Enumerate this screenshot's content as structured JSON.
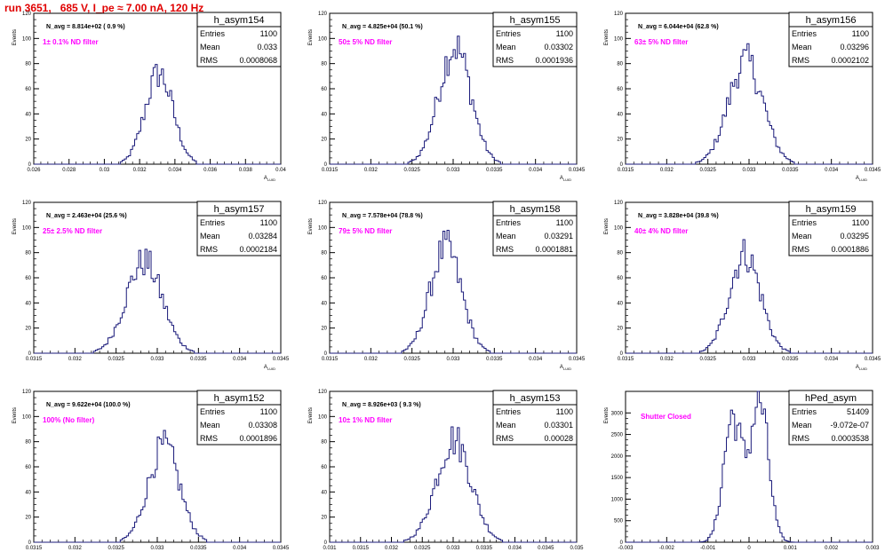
{
  "run_title": "run 3651,   685 V, I_pe ≈ 7.00 nA, 120 Hz",
  "colors": {
    "histogram": "#1a1a7a",
    "annotation": "#ff00ff",
    "title": "#e00000",
    "text": "#000000"
  },
  "chart_data": [
    {
      "type": "histogram",
      "name": "h_asym154",
      "stats": {
        "entries": "1100",
        "mean": "0.033",
        "rms": "0.0008068"
      },
      "navg": "N_avg = 8.814e+02 ( 0.9 %)",
      "filter": "1± 0.1% ND filter",
      "ylabel": "Events",
      "xlabel": "A",
      "ylim": [
        0,
        120
      ],
      "yticks": [
        "0",
        "20",
        "40",
        "60",
        "80",
        "100",
        "120"
      ],
      "xlim": [
        0.026,
        0.04
      ],
      "xticks": [
        "0.026",
        "0.028",
        "0.03",
        "0.032",
        "0.034",
        "0.036",
        "0.038",
        "0.04"
      ],
      "center": 0.0331,
      "sigma": 0.00079,
      "peak": 72
    },
    {
      "type": "histogram",
      "name": "h_asym155",
      "stats": {
        "entries": "1100",
        "mean": "0.03302",
        "rms": "0.0001936"
      },
      "navg": "N_avg = 4.825e+04 (50.1 %)",
      "filter": "50± 5% ND filter",
      "ylabel": "Events",
      "xlabel": "A",
      "ylim": [
        0,
        120
      ],
      "yticks": [
        "0",
        "20",
        "40",
        "60",
        "80",
        "100",
        "120"
      ],
      "xlim": [
        0.0315,
        0.0345
      ],
      "xticks": [
        "0.0315",
        "0.032",
        "0.0325",
        "0.033",
        "0.0335",
        "0.034",
        "0.0345"
      ],
      "center": 0.03302,
      "sigma": 0.000194,
      "peak": 94
    },
    {
      "type": "histogram",
      "name": "h_asym156",
      "stats": {
        "entries": "1100",
        "mean": "0.03296",
        "rms": "0.0002102"
      },
      "navg": "N_avg = 6.044e+04 (62.8 %)",
      "filter": "63± 5% ND filter",
      "ylabel": "Events",
      "xlabel": "A",
      "ylim": [
        0,
        120
      ],
      "yticks": [
        "0",
        "20",
        "40",
        "60",
        "80",
        "100",
        "120"
      ],
      "xlim": [
        0.0315,
        0.0345
      ],
      "xticks": [
        "0.0315",
        "0.032",
        "0.0325",
        "0.033",
        "0.0335",
        "0.034",
        "0.0345"
      ],
      "center": 0.03296,
      "sigma": 0.00021,
      "peak": 82
    },
    {
      "type": "histogram",
      "name": "h_asym157",
      "stats": {
        "entries": "1100",
        "mean": "0.03284",
        "rms": "0.0002184"
      },
      "navg": "N_avg = 2.463e+04 (25.6 %)",
      "filter": "25± 2.5% ND filter",
      "ylabel": "Events",
      "xlabel": "A",
      "ylim": [
        0,
        120
      ],
      "yticks": [
        "0",
        "20",
        "40",
        "60",
        "80",
        "100",
        "120"
      ],
      "xlim": [
        0.0315,
        0.0345
      ],
      "xticks": [
        "0.0315",
        "0.032",
        "0.0325",
        "0.033",
        "0.0335",
        "0.034",
        "0.0345"
      ],
      "center": 0.03284,
      "sigma": 0.000218,
      "peak": 73
    },
    {
      "type": "histogram",
      "name": "h_asym158",
      "stats": {
        "entries": "1100",
        "mean": "0.03291",
        "rms": "0.0001881"
      },
      "navg": "N_avg = 7.578e+04 (78.8 %)",
      "filter": "79± 5% ND filter",
      "ylabel": "Events",
      "xlabel": "A",
      "ylim": [
        0,
        120
      ],
      "yticks": [
        "0",
        "20",
        "40",
        "60",
        "80",
        "100",
        "120"
      ],
      "xlim": [
        0.0315,
        0.0345
      ],
      "xticks": [
        "0.0315",
        "0.032",
        "0.0325",
        "0.033",
        "0.0335",
        "0.034",
        "0.0345"
      ],
      "center": 0.03291,
      "sigma": 0.000188,
      "peak": 84
    },
    {
      "type": "histogram",
      "name": "h_asym159",
      "stats": {
        "entries": "1100",
        "mean": "0.03295",
        "rms": "0.0001886"
      },
      "navg": "N_avg = 3.828e+04 (39.8 %)",
      "filter": "40± 4% ND filter",
      "ylabel": "Events",
      "xlabel": "A",
      "ylim": [
        0,
        120
      ],
      "yticks": [
        "0",
        "20",
        "40",
        "60",
        "80",
        "100",
        "120"
      ],
      "xlim": [
        0.0315,
        0.0345
      ],
      "xticks": [
        "0.0315",
        "0.032",
        "0.0325",
        "0.033",
        "0.0335",
        "0.034",
        "0.0345"
      ],
      "center": 0.03295,
      "sigma": 0.000189,
      "peak": 79
    },
    {
      "type": "histogram",
      "name": "h_asym152",
      "stats": {
        "entries": "1100",
        "mean": "0.03308",
        "rms": "0.0001896"
      },
      "navg": "N_avg = 9.622e+04 (100.0 %)",
      "filter": "100% (No filter)",
      "ylabel": "Events",
      "xlabel": "A",
      "ylim": [
        0,
        120
      ],
      "yticks": [
        "0",
        "20",
        "40",
        "60",
        "80",
        "100",
        "120"
      ],
      "xlim": [
        0.0315,
        0.0345
      ],
      "xticks": [
        "0.0315",
        "0.032",
        "0.0325",
        "0.033",
        "0.0335",
        "0.034",
        "0.0345"
      ],
      "center": 0.03308,
      "sigma": 0.00019,
      "peak": 76
    },
    {
      "type": "histogram",
      "name": "h_asym153",
      "stats": {
        "entries": "1100",
        "mean": "0.03301",
        "rms": "0.00028"
      },
      "navg": "N_avg = 8.926e+03 ( 9.3 %)",
      "filter": "10± 1% ND filter",
      "ylabel": "Events",
      "xlabel": "A",
      "ylim": [
        0,
        120
      ],
      "yticks": [
        "0",
        "20",
        "40",
        "60",
        "80",
        "100",
        "120"
      ],
      "xlim": [
        0.031,
        0.035
      ],
      "xticks": [
        "0.031",
        "0.0315",
        "0.032",
        "0.0325",
        "0.033",
        "0.0335",
        "0.034",
        "0.0345",
        "0.035"
      ],
      "center": 0.03301,
      "sigma": 0.00028,
      "peak": 82
    },
    {
      "type": "histogram",
      "name": "hPed_asym",
      "stats": {
        "entries": "51409",
        "mean": "-9.072e-07",
        "rms": "0.0003538"
      },
      "navg": "",
      "filter": "Shutter Closed",
      "ylabel": "Events",
      "xlabel": "A",
      "ylim": [
        0,
        3500
      ],
      "yticks": [
        "0",
        "500",
        "1000",
        "1500",
        "2000",
        "2500",
        "3000"
      ],
      "xlim": [
        -0.003,
        0.003
      ],
      "xticks": [
        "-0.003",
        "-0.002",
        "-0.001",
        "0",
        "0.001",
        "0.002",
        "0.003"
      ],
      "bimodal": true,
      "center": -0.0004,
      "center2": 0.00025,
      "sigma": 0.00022,
      "peak": 2900,
      "peak2": 3250
    }
  ]
}
